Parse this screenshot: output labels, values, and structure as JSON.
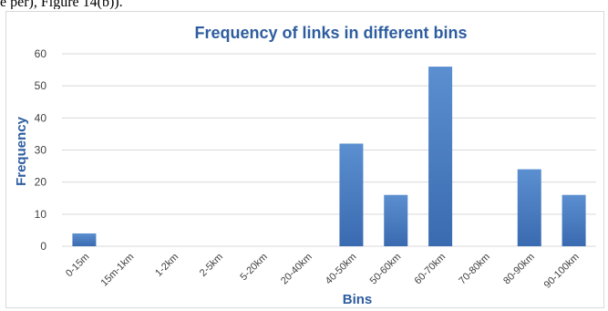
{
  "header": {
    "cut_text": "e per), Figure 14(b))."
  },
  "chart_data": {
    "type": "bar",
    "title": "Frequency of links in different bins",
    "xlabel": "Bins",
    "ylabel": "Frequency",
    "ylim": [
      0,
      60
    ],
    "yticks": [
      "0",
      "10",
      "20",
      "30",
      "40",
      "50",
      "60"
    ],
    "categories": [
      "0-15m",
      "15m-1km",
      "1-2km",
      "2-5km",
      "5-20km",
      "20-40km",
      "40-50km",
      "50-60km",
      "60-70km",
      "70-80km",
      "80-90km",
      "90-100km"
    ],
    "values": [
      4,
      0,
      0,
      0,
      0,
      0,
      32,
      16,
      56,
      0,
      24,
      16
    ],
    "grid": true,
    "legend": "none",
    "colors": {
      "bar_top": "#5b8fd0",
      "bar_bottom": "#3a6ab0",
      "title": "#2e5d9f",
      "grid": "#d9d9d9"
    }
  }
}
